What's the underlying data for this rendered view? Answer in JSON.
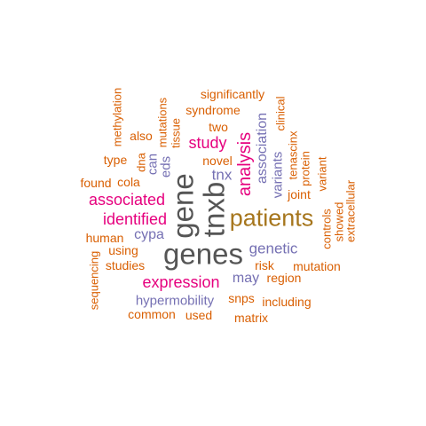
{
  "colors": {
    "orange": "#d95f02",
    "magenta": "#e6007e",
    "purple": "#7570b3",
    "gray": "#555555",
    "brown": "#a6761d"
  },
  "words": [
    {
      "text": "genes",
      "color": "gray"
    },
    {
      "text": "gene",
      "color": "gray"
    },
    {
      "text": "tnxb",
      "color": "gray"
    },
    {
      "text": "patients",
      "color": "brown"
    },
    {
      "text": "analysis",
      "color": "magenta"
    },
    {
      "text": "expression",
      "color": "magenta"
    },
    {
      "text": "associated",
      "color": "magenta"
    },
    {
      "text": "identified",
      "color": "magenta"
    },
    {
      "text": "study",
      "color": "magenta"
    },
    {
      "text": "genetic",
      "color": "purple"
    },
    {
      "text": "tnx",
      "color": "purple"
    },
    {
      "text": "association",
      "color": "purple"
    },
    {
      "text": "variants",
      "color": "purple"
    },
    {
      "text": "hypermobility",
      "color": "purple"
    },
    {
      "text": "may",
      "color": "purple"
    },
    {
      "text": "cypa",
      "color": "purple"
    },
    {
      "text": "eds",
      "color": "purple"
    },
    {
      "text": "can",
      "color": "purple"
    },
    {
      "text": "significantly",
      "color": "orange"
    },
    {
      "text": "syndrome",
      "color": "orange"
    },
    {
      "text": "two",
      "color": "orange"
    },
    {
      "text": "novel",
      "color": "orange"
    },
    {
      "text": "also",
      "color": "orange"
    },
    {
      "text": "type",
      "color": "orange"
    },
    {
      "text": "found",
      "color": "orange"
    },
    {
      "text": "cola",
      "color": "orange"
    },
    {
      "text": "human",
      "color": "orange"
    },
    {
      "text": "using",
      "color": "orange"
    },
    {
      "text": "studies",
      "color": "orange"
    },
    {
      "text": "risk",
      "color": "orange"
    },
    {
      "text": "region",
      "color": "orange"
    },
    {
      "text": "mutation",
      "color": "orange"
    },
    {
      "text": "snps",
      "color": "orange"
    },
    {
      "text": "including",
      "color": "orange"
    },
    {
      "text": "common",
      "color": "orange"
    },
    {
      "text": "used",
      "color": "orange"
    },
    {
      "text": "matrix",
      "color": "orange"
    },
    {
      "text": "joint",
      "color": "orange"
    },
    {
      "text": "methylation",
      "color": "orange"
    },
    {
      "text": "mutations",
      "color": "orange"
    },
    {
      "text": "tissue",
      "color": "orange"
    },
    {
      "text": "dna",
      "color": "orange"
    },
    {
      "text": "clinical",
      "color": "orange"
    },
    {
      "text": "tenascinx",
      "color": "orange"
    },
    {
      "text": "protein",
      "color": "orange"
    },
    {
      "text": "variant",
      "color": "orange"
    },
    {
      "text": "controls",
      "color": "orange"
    },
    {
      "text": "showed",
      "color": "orange"
    },
    {
      "text": "extracellular",
      "color": "orange"
    },
    {
      "text": "sequencing",
      "color": "orange"
    }
  ]
}
